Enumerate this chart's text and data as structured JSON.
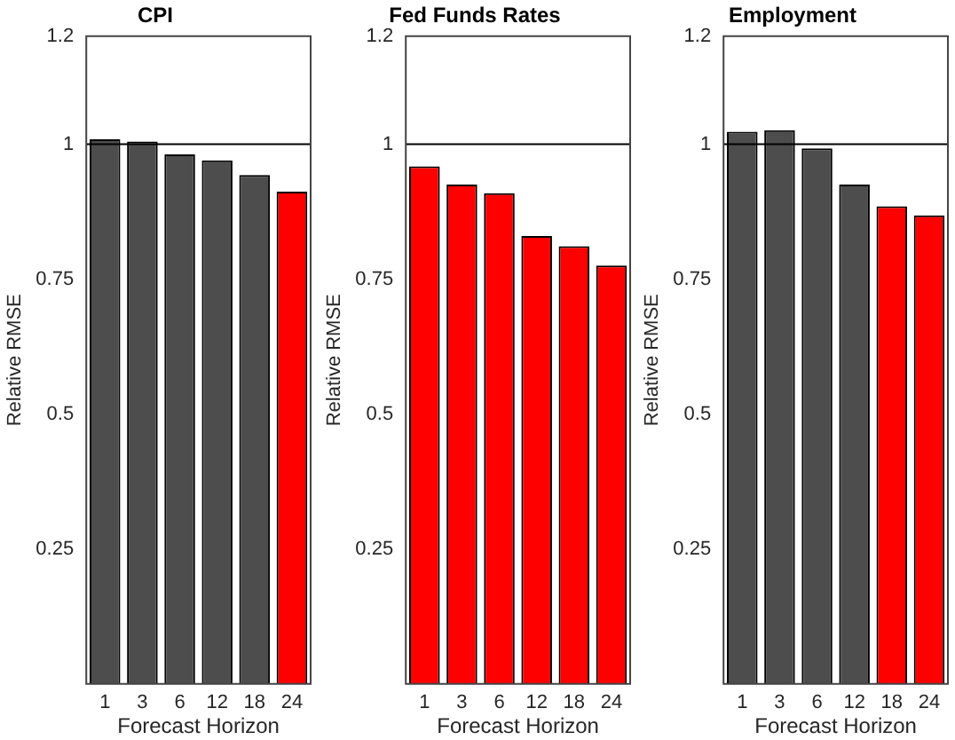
{
  "chart_data": [
    {
      "type": "bar",
      "title": "CPI",
      "xlabel": "Forecast Horizon",
      "ylabel": "Relative RMSE",
      "categories": [
        "1",
        "3",
        "6",
        "12",
        "18",
        "24"
      ],
      "values": [
        1.009,
        1.005,
        0.981,
        0.97,
        0.943,
        0.912
      ],
      "colors": [
        "#4d4d4d",
        "#4d4d4d",
        "#4d4d4d",
        "#4d4d4d",
        "#4d4d4d",
        "#ff0000"
      ],
      "ylim": [
        0,
        1.2
      ],
      "yticks": [
        0.25,
        0.5,
        0.75,
        1,
        1.2
      ],
      "grid": false,
      "legend": false,
      "ref_lines": [
        {
          "axis": "y",
          "value": 1,
          "color": "#000000"
        }
      ]
    },
    {
      "type": "bar",
      "title": "Fed Funds Rates",
      "xlabel": "Forecast Horizon",
      "ylabel": "Relative RMSE",
      "categories": [
        "1",
        "3",
        "6",
        "12",
        "18",
        "24"
      ],
      "values": [
        0.959,
        0.925,
        0.909,
        0.83,
        0.811,
        0.775
      ],
      "colors": [
        "#ff0000",
        "#ff0000",
        "#ff0000",
        "#ff0000",
        "#ff0000",
        "#ff0000"
      ],
      "ylim": [
        0,
        1.2
      ],
      "yticks": [
        0.25,
        0.5,
        0.75,
        1,
        1.2
      ],
      "grid": false,
      "legend": false,
      "ref_lines": [
        {
          "axis": "y",
          "value": 1,
          "color": "#000000"
        }
      ]
    },
    {
      "type": "bar",
      "title": "Employment",
      "xlabel": "Forecast Horizon",
      "ylabel": "Relative RMSE",
      "categories": [
        "1",
        "3",
        "6",
        "12",
        "18",
        "24"
      ],
      "values": [
        1.023,
        1.026,
        0.992,
        0.925,
        0.885,
        0.868
      ],
      "colors": [
        "#4d4d4d",
        "#4d4d4d",
        "#4d4d4d",
        "#4d4d4d",
        "#ff0000",
        "#ff0000"
      ],
      "ylim": [
        0,
        1.2
      ],
      "yticks": [
        0.25,
        0.5,
        0.75,
        1,
        1.2
      ],
      "grid": false,
      "legend": false,
      "ref_lines": [
        {
          "axis": "y",
          "value": 1,
          "color": "#000000"
        }
      ]
    }
  ]
}
